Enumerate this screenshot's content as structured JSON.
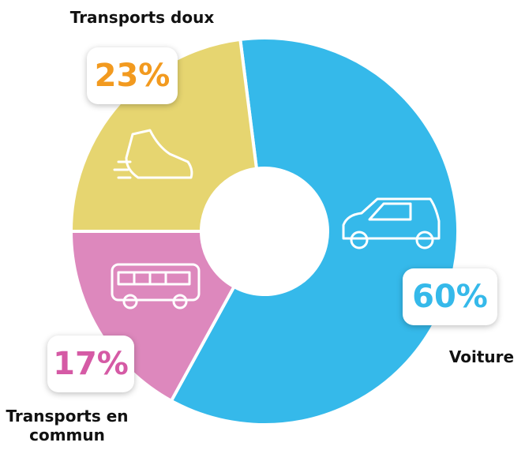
{
  "chart_data": {
    "type": "pie",
    "categories": [
      "Voiture",
      "Transports en commun",
      "Transports doux"
    ],
    "values": [
      60,
      17,
      23
    ],
    "value_labels": [
      "60%",
      "17%",
      "23%"
    ],
    "colors": [
      "#35b9ea",
      "#dd88bd",
      "#e6d570"
    ],
    "label_colors": [
      "#35b9ea",
      "#d55aa5",
      "#f29a1f"
    ]
  }
}
